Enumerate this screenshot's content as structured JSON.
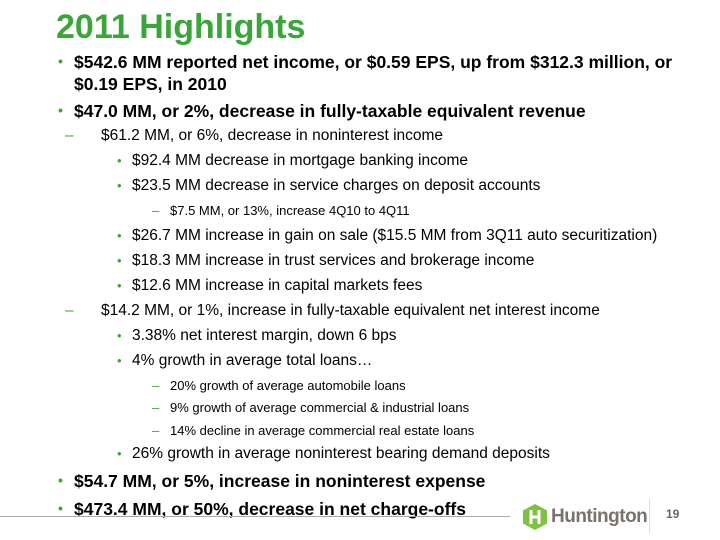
{
  "title": "2011 Highlights",
  "bullets": [
    {
      "level": 1,
      "text": "$542.6 MM reported net income, or $0.59 EPS, up  from $312.3 million, or"
    },
    {
      "level": 0,
      "text": "$0.19 EPS,  in 2010"
    },
    {
      "level": 1,
      "text": "$47.0 MM, or 2%, decrease in fully-taxable equivalent revenue"
    },
    {
      "level": 2,
      "text": "$61.2 MM, or 6%, decrease in noninterest income"
    },
    {
      "level": 3,
      "text": "$92.4 MM decrease in mortgage banking income"
    },
    {
      "level": 3,
      "text": "$23.5 MM decrease in service charges on deposit accounts"
    },
    {
      "level": 4,
      "text": "$7.5 MM, or 13%,  increase 4Q10 to 4Q11"
    },
    {
      "level": 3,
      "text": "$26.7 MM increase in gain on sale ($15.5 MM from 3Q11 auto securitization)"
    },
    {
      "level": 3,
      "text": "$18.3 MM increase in trust services and brokerage income"
    },
    {
      "level": 3,
      "text": "$12.6 MM increase in capital markets fees"
    },
    {
      "level": 2,
      "text": "$14.2 MM, or 1%, increase in fully-taxable equivalent net interest income"
    },
    {
      "level": 3,
      "text": "3.38% net interest margin, down 6 bps"
    },
    {
      "level": 3,
      "text": "4% growth in average total loans…"
    },
    {
      "level": 4,
      "text": "20% growth of average automobile loans"
    },
    {
      "level": 4,
      "text": "9% growth of average commercial & industrial loans"
    },
    {
      "level": 4,
      "text": "14% decline in average commercial real estate loans"
    },
    {
      "level": 3,
      "text": "26% growth in average noninterest bearing demand deposits"
    },
    {
      "level": 1,
      "text": "$54.7 MM, or 5%, increase in noninterest expense"
    },
    {
      "level": 1,
      "text": "$473.4 MM, or 50%, decrease in net charge-offs"
    }
  ],
  "footer": {
    "logo_text": "Huntington",
    "page_number": "19"
  },
  "colors": {
    "accent": "#3aa63a",
    "logo_green": "#7dc242",
    "logo_gray": "#7a736b"
  }
}
